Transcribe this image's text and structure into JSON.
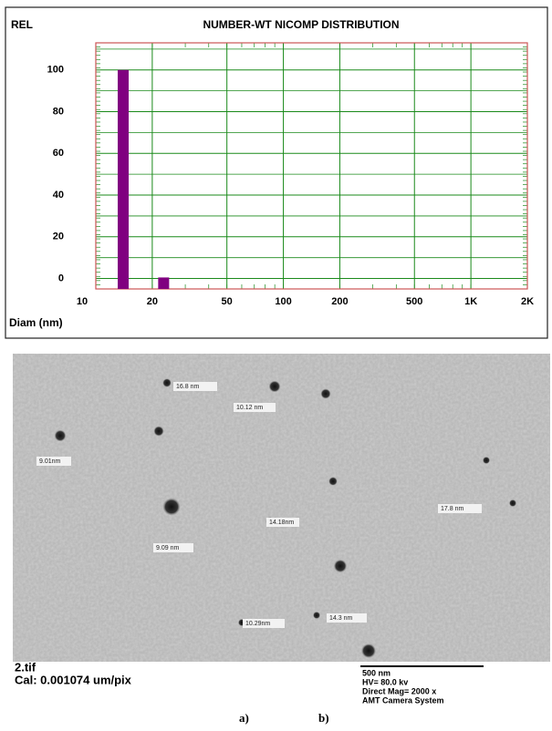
{
  "chart_data": {
    "type": "bar",
    "title": "NUMBER-WT NICOMP DISTRIBUTION",
    "ylabel": "REL",
    "xlabel": "Diam (nm)",
    "x": [
      14,
      23
    ],
    "values": [
      100,
      0.5
    ],
    "color": "#800080",
    "xscale": "log",
    "xlim": [
      10,
      2000
    ],
    "xticks": [
      10,
      20,
      50,
      100,
      200,
      500,
      {
        "value": 1000,
        "label": "1K"
      },
      {
        "value": 2000,
        "label": "2K"
      }
    ],
    "ylim": [
      -5,
      113
    ],
    "yticks": [
      0,
      20,
      40,
      60,
      80,
      100
    ],
    "grid": true,
    "grid_color": "#1a8a1a"
  },
  "micrograph": {
    "annotations": [
      "16.8 nm",
      "10.12 nm",
      "9.01nm",
      "17.8 nm",
      "9.09 nm",
      "14.18nm",
      "10.29nm",
      "14.3 nm"
    ],
    "file": "2.tif",
    "calibration": "Cal: 0.001074 um/pix",
    "scale_bar": "500 nm",
    "voltage": "HV= 80.0 kv",
    "magnification": "Direct Mag= 2000 x",
    "camera": "AMT Camera System"
  },
  "panel_labels": [
    "a)",
    "b)"
  ]
}
